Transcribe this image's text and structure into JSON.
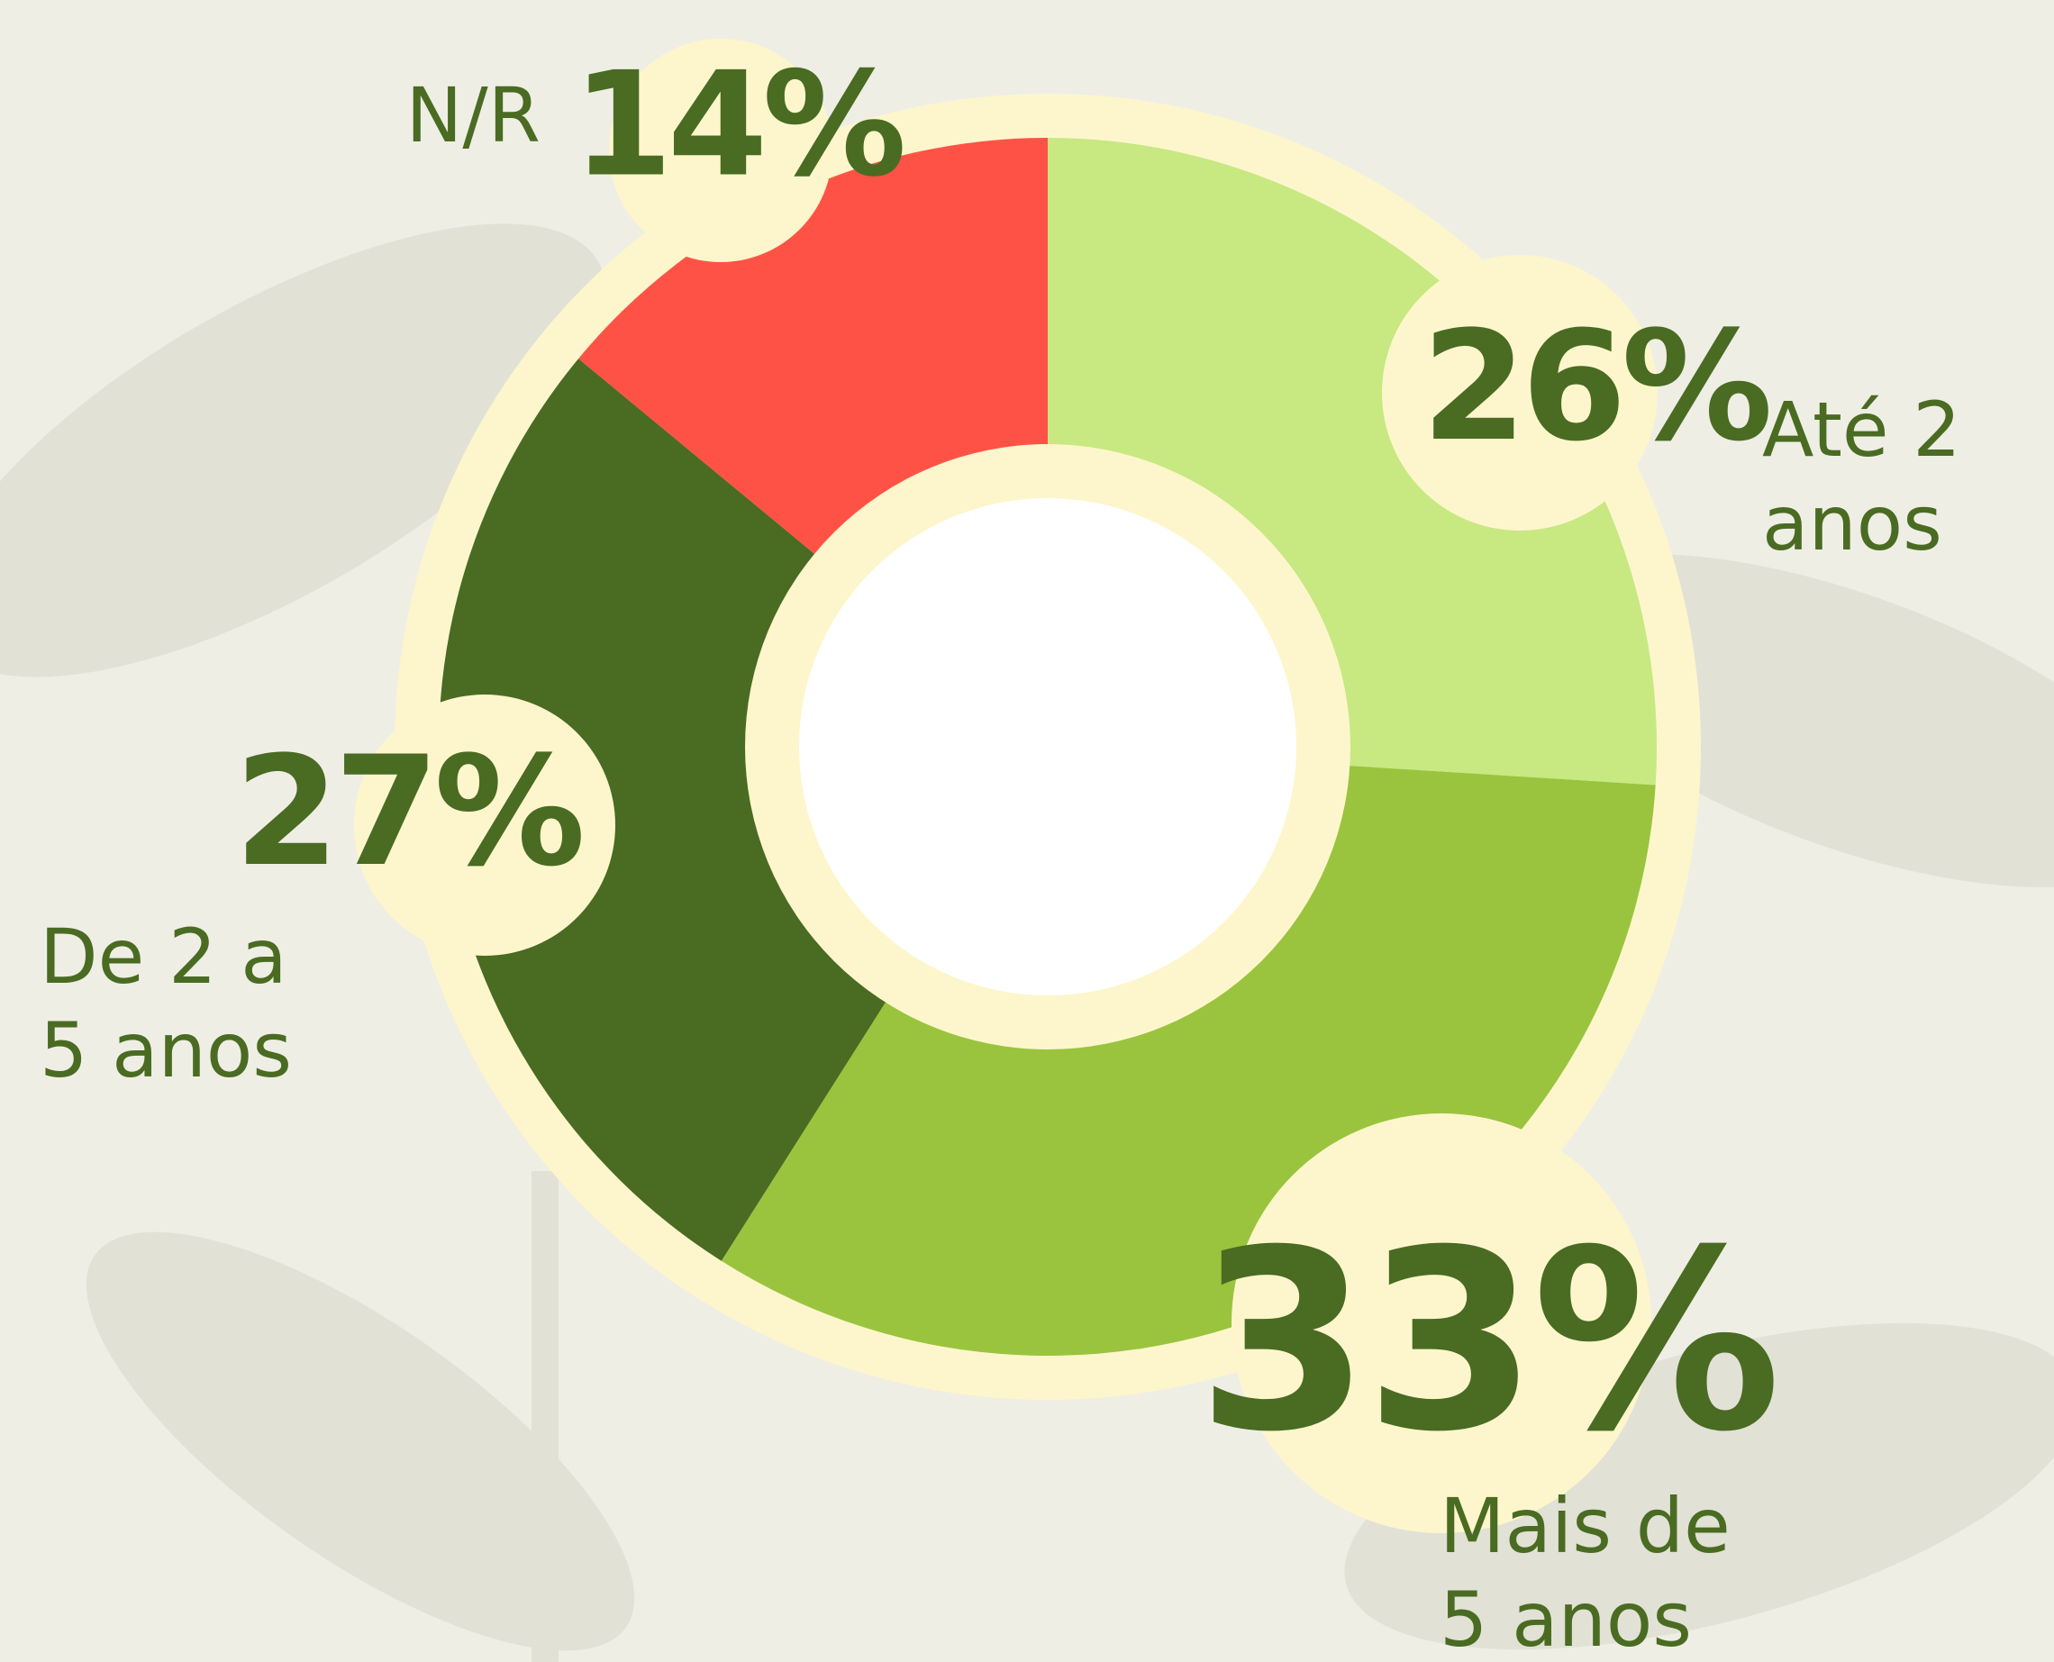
{
  "chart_data": {
    "type": "donut",
    "categories": [
      "Até 2 anos",
      "Mais de 5 anos",
      "De 2 a 5 anos",
      "N/R"
    ],
    "values": [
      26,
      33,
      27,
      14
    ],
    "value_labels": [
      "26%",
      "33%",
      "27%",
      "14%"
    ],
    "colors": [
      "#c8e882",
      "#9ac43e",
      "#4a6b22",
      "#ff5246"
    ]
  }
}
